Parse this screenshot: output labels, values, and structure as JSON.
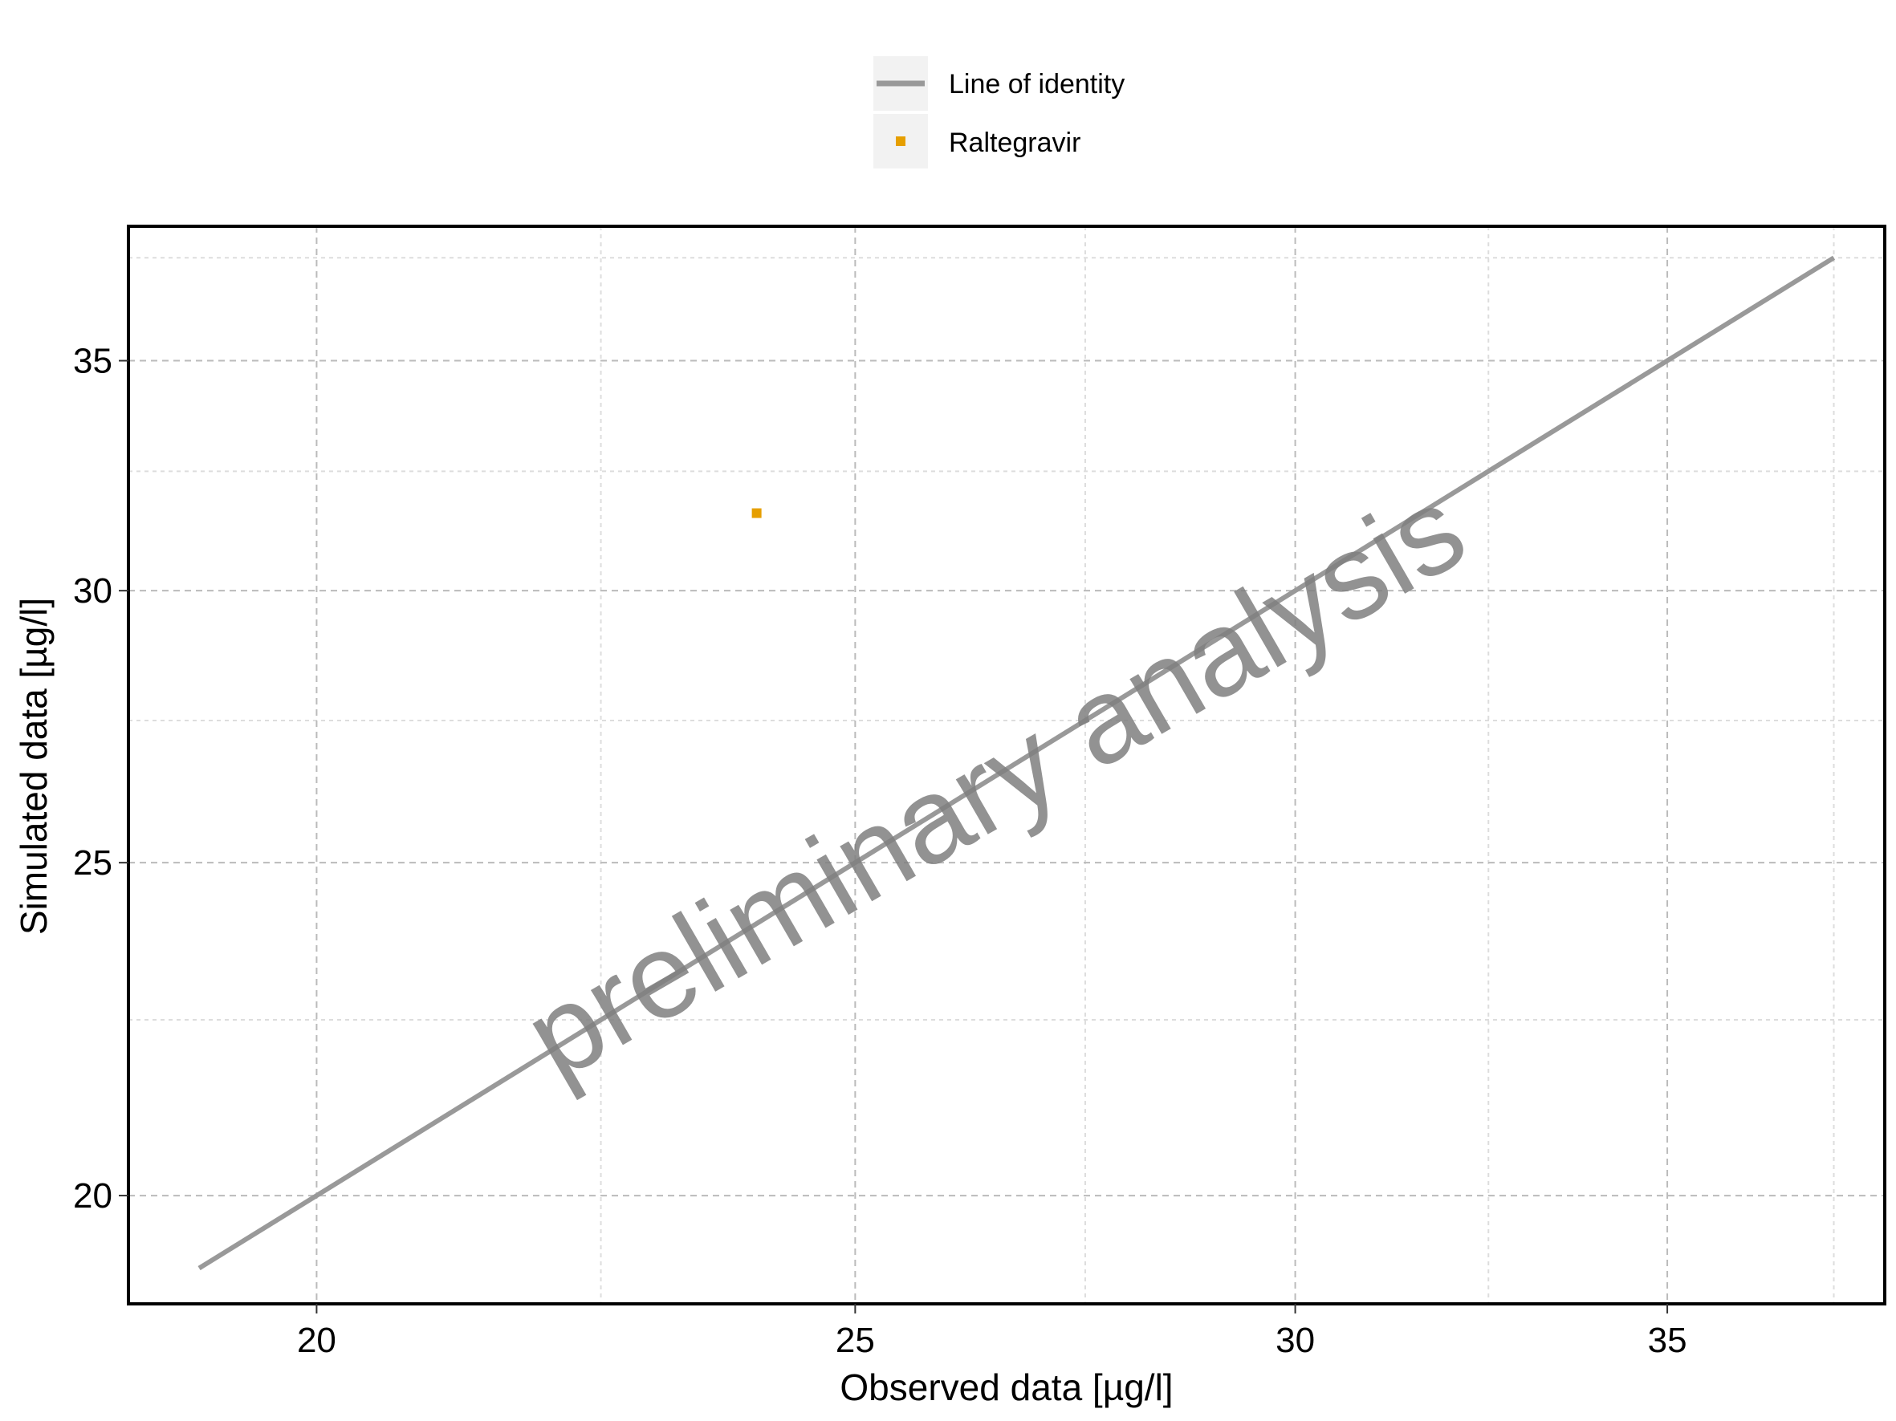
{
  "chart_data": {
    "type": "scatter",
    "xlabel": "Observed data [µg/l]",
    "ylabel": "Simulated data [µg/l]",
    "x_scale": "log",
    "y_scale": "log",
    "xlim": [
      18.5,
      38.3
    ],
    "ylim": [
      18.6,
      38.3
    ],
    "x_ticks": [
      20,
      25,
      30,
      35
    ],
    "y_ticks": [
      20,
      25,
      30,
      35
    ],
    "x_minor_ticks": [
      22.5,
      27.5,
      32.5,
      37.5
    ],
    "y_minor_ticks": [
      22.5,
      27.5,
      32.5,
      37.5
    ],
    "grid": true,
    "legend_position": "top",
    "legend": [
      {
        "label": "Line of identity",
        "kind": "line",
        "color": "#999999"
      },
      {
        "label": "Raltegravir",
        "kind": "point",
        "color": "#E69F00"
      }
    ],
    "identity_line": {
      "x": [
        19.05,
        37.5
      ],
      "y": [
        19.05,
        37.5
      ],
      "color": "#999999"
    },
    "series": [
      {
        "name": "Raltegravir",
        "x": [
          24.0
        ],
        "y": [
          31.6
        ],
        "color": "#E69F00"
      }
    ],
    "watermark": "preliminary analysis"
  }
}
